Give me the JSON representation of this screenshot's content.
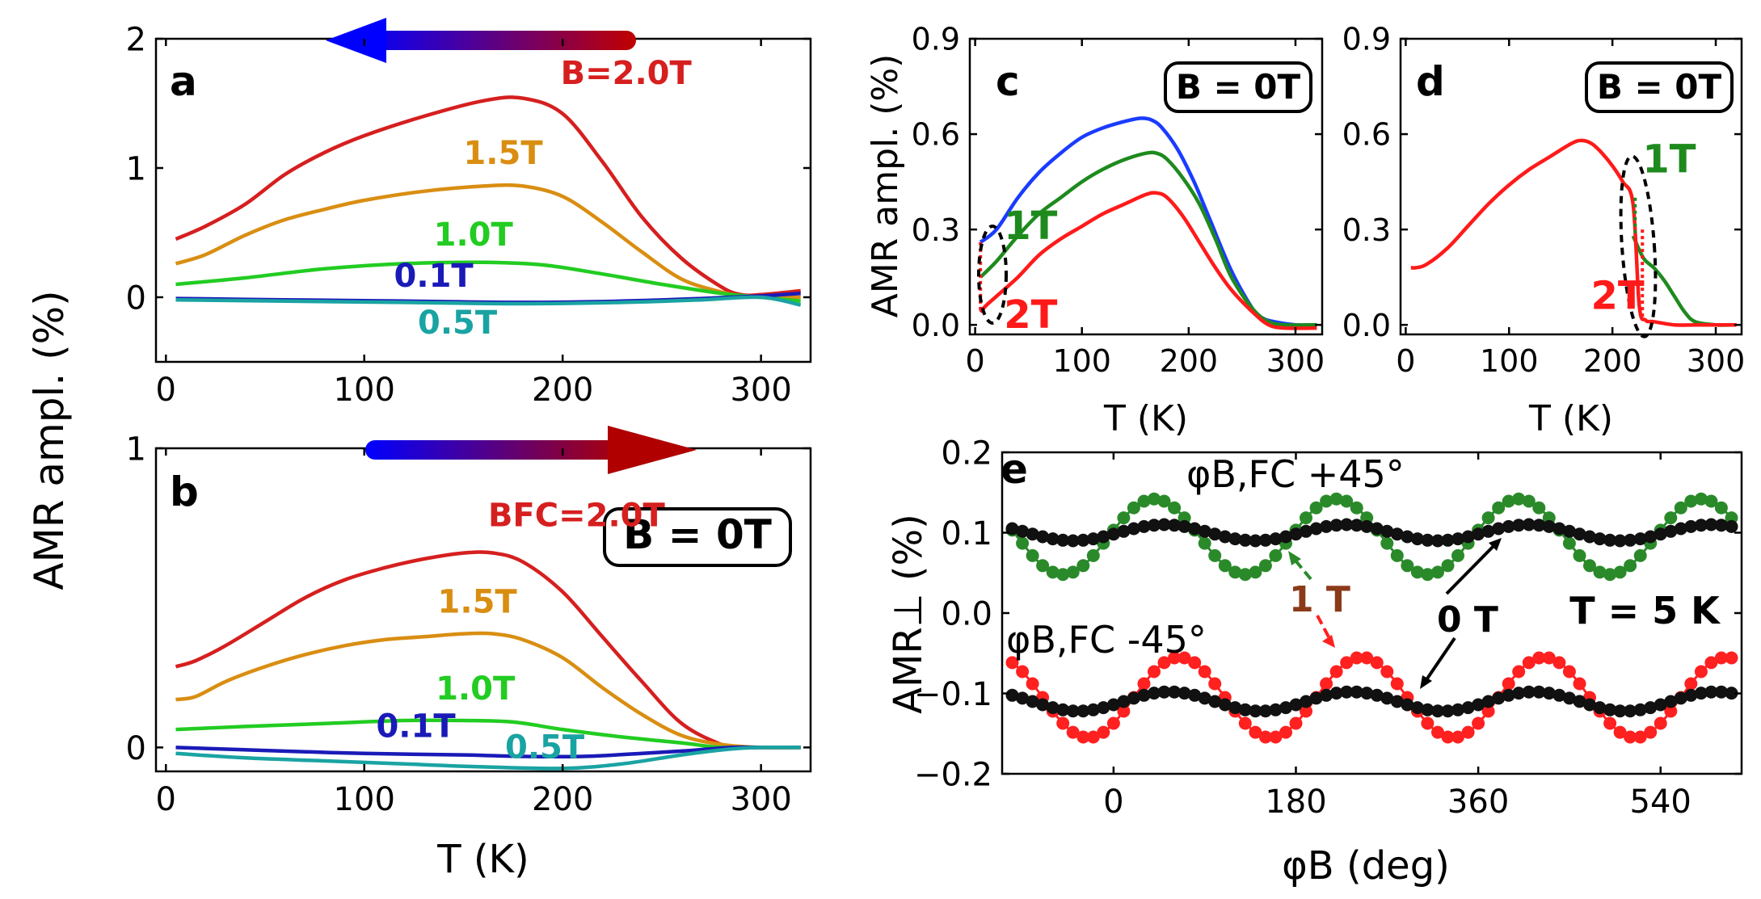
{
  "figure": {
    "shared_ylabel": "AMR ampl. (%)"
  },
  "chart_data": [
    {
      "id": "a",
      "type": "line",
      "panel_label": "a",
      "xlabel": "",
      "ylabel": "AMR ampl. (%)",
      "xlim": [
        -5,
        325
      ],
      "ylim": [
        -0.5,
        2.0
      ],
      "xticks": [
        0,
        100,
        200,
        300
      ],
      "yticks": [
        0,
        1,
        2
      ],
      "arrow_direction": "left",
      "box_label": "",
      "series": [
        {
          "name": "B=2.0T",
          "color": "#d61f1f",
          "x": [
            5,
            20,
            40,
            60,
            80,
            100,
            130,
            160,
            180,
            200,
            220,
            240,
            260,
            280,
            290,
            300,
            320
          ],
          "y": [
            0.45,
            0.55,
            0.72,
            0.95,
            1.12,
            1.25,
            1.4,
            1.52,
            1.54,
            1.42,
            1.05,
            0.62,
            0.3,
            0.08,
            0.02,
            0.02,
            0.05
          ]
        },
        {
          "name": "1.5T",
          "color": "#d98e12",
          "x": [
            5,
            20,
            40,
            60,
            80,
            100,
            130,
            160,
            180,
            200,
            220,
            240,
            260,
            280,
            290,
            300,
            320
          ],
          "y": [
            0.26,
            0.33,
            0.48,
            0.6,
            0.68,
            0.75,
            0.82,
            0.86,
            0.86,
            0.78,
            0.58,
            0.35,
            0.14,
            0.04,
            0.01,
            0.0,
            0.0
          ]
        },
        {
          "name": "1.0T",
          "color": "#22cc22",
          "x": [
            5,
            40,
            80,
            120,
            160,
            190,
            220,
            250,
            280,
            300,
            320
          ],
          "y": [
            0.1,
            0.15,
            0.22,
            0.26,
            0.27,
            0.25,
            0.18,
            0.1,
            0.03,
            0.0,
            -0.03
          ]
        },
        {
          "name": "0.1T",
          "color": "#1a1ab8",
          "x": [
            5,
            60,
            120,
            180,
            230,
            270,
            300,
            320
          ],
          "y": [
            -0.01,
            -0.02,
            -0.03,
            -0.04,
            -0.03,
            -0.01,
            0.01,
            0.03
          ]
        },
        {
          "name": "0.5T",
          "color": "#1aa3a3",
          "x": [
            5,
            60,
            120,
            180,
            230,
            270,
            300,
            320
          ],
          "y": [
            -0.02,
            -0.03,
            -0.04,
            -0.05,
            -0.04,
            -0.02,
            0.0,
            -0.06
          ]
        }
      ],
      "labels": [
        {
          "text": "B=2.0T",
          "color": "#d61f1f",
          "x": 232,
          "y": 1.65
        },
        {
          "text": "1.5T",
          "color": "#d98e12",
          "x": 170,
          "y": 1.03
        },
        {
          "text": "1.0T",
          "color": "#22cc22",
          "x": 155,
          "y": 0.4
        },
        {
          "text": "0.1T",
          "color": "#1a1ab8",
          "x": 135,
          "y": 0.08
        },
        {
          "text": "0.5T",
          "color": "#1aa3a3",
          "x": 147,
          "y": -0.28
        }
      ]
    },
    {
      "id": "b",
      "type": "line",
      "panel_label": "b",
      "xlabel": "T (K)",
      "ylabel": "",
      "xlim": [
        -5,
        325
      ],
      "ylim": [
        -0.08,
        1.0
      ],
      "xticks": [
        0,
        100,
        200,
        300
      ],
      "yticks": [
        0,
        1
      ],
      "arrow_direction": "right",
      "box_label": "B = 0T",
      "series": [
        {
          "name": "BFC=2.0T",
          "color": "#d61f1f",
          "x": [
            5,
            15,
            30,
            50,
            70,
            90,
            110,
            130,
            150,
            165,
            180,
            200,
            220,
            240,
            260,
            280,
            290,
            300,
            320
          ],
          "y": [
            0.27,
            0.29,
            0.34,
            0.42,
            0.5,
            0.56,
            0.6,
            0.63,
            0.65,
            0.65,
            0.62,
            0.52,
            0.37,
            0.22,
            0.08,
            0.01,
            0.0,
            0.0,
            0.0
          ]
        },
        {
          "name": "1.5T",
          "color": "#d98e12",
          "x": [
            5,
            15,
            30,
            50,
            70,
            90,
            110,
            130,
            150,
            165,
            180,
            200,
            220,
            240,
            260,
            280,
            300,
            320
          ],
          "y": [
            0.16,
            0.17,
            0.22,
            0.27,
            0.31,
            0.34,
            0.36,
            0.37,
            0.38,
            0.38,
            0.36,
            0.3,
            0.2,
            0.11,
            0.04,
            0.01,
            0.0,
            0.0
          ]
        },
        {
          "name": "1.0T",
          "color": "#22cc22",
          "x": [
            5,
            40,
            80,
            120,
            150,
            175,
            200,
            230,
            260,
            280,
            300,
            320
          ],
          "y": [
            0.06,
            0.07,
            0.08,
            0.09,
            0.09,
            0.085,
            0.06,
            0.035,
            0.015,
            0.0,
            0.0,
            0.0
          ]
        },
        {
          "name": "0.1T",
          "color": "#1a1ab8",
          "x": [
            5,
            50,
            100,
            150,
            180,
            210,
            240,
            265,
            285,
            300,
            320
          ],
          "y": [
            0.0,
            -0.01,
            -0.02,
            -0.025,
            -0.03,
            -0.03,
            -0.02,
            -0.01,
            0.0,
            0.0,
            0.0
          ]
        },
        {
          "name": "0.5T",
          "color": "#1aa3a3",
          "x": [
            5,
            40,
            80,
            120,
            160,
            200,
            230,
            260,
            285,
            300,
            320
          ],
          "y": [
            -0.02,
            -0.035,
            -0.045,
            -0.055,
            -0.065,
            -0.07,
            -0.055,
            -0.025,
            -0.005,
            0.0,
            0.0
          ]
        }
      ],
      "labels": [
        {
          "text": "BFC=2.0T",
          "color": "#d61f1f",
          "x": 207,
          "y": 0.74
        },
        {
          "text": "1.5T",
          "color": "#d98e12",
          "x": 157,
          "y": 0.45
        },
        {
          "text": "1.0T",
          "color": "#22cc22",
          "x": 156,
          "y": 0.16
        },
        {
          "text": "0.1T",
          "color": "#1a1ab8",
          "x": 126,
          "y": 0.035
        },
        {
          "text": "0.5T",
          "color": "#1aa3a3",
          "x": 191,
          "y": -0.035
        }
      ]
    },
    {
      "id": "c",
      "type": "line",
      "panel_label": "c",
      "xlabel": "T (K)",
      "ylabel": "AMR ampl. (%)",
      "xlim": [
        -5,
        325
      ],
      "ylim": [
        -0.03,
        0.9
      ],
      "xticks": [
        0,
        100,
        200,
        300
      ],
      "yticks": [
        0.0,
        0.3,
        0.6,
        0.9
      ],
      "ytick_labels": [
        "0.0",
        "0.3",
        "0.6",
        "0.9"
      ],
      "box_label": "B = 0T",
      "series": [
        {
          "name": "blue",
          "color": "#1a3cff",
          "x": [
            5,
            20,
            40,
            60,
            80,
            100,
            120,
            140,
            155,
            165,
            175,
            190,
            205,
            220,
            240,
            260,
            270,
            280,
            300,
            320
          ],
          "y": [
            0.26,
            0.3,
            0.4,
            0.48,
            0.54,
            0.59,
            0.62,
            0.64,
            0.65,
            0.645,
            0.62,
            0.55,
            0.45,
            0.33,
            0.17,
            0.05,
            0.02,
            0.01,
            0.0,
            0.0
          ]
        },
        {
          "name": "1T",
          "color": "#1e8a1e",
          "x": [
            5,
            20,
            40,
            60,
            80,
            100,
            120,
            140,
            160,
            170,
            180,
            195,
            210,
            225,
            240,
            260,
            275,
            290,
            320
          ],
          "y": [
            0.15,
            0.2,
            0.28,
            0.35,
            0.4,
            0.45,
            0.49,
            0.52,
            0.54,
            0.54,
            0.52,
            0.46,
            0.38,
            0.27,
            0.15,
            0.05,
            0.01,
            0.0,
            0.0
          ]
        },
        {
          "name": "2T",
          "color": "#ff1a1a",
          "x": [
            5,
            10,
            20,
            40,
            60,
            80,
            100,
            120,
            140,
            160,
            170,
            180,
            195,
            210,
            225,
            240,
            260,
            275,
            290,
            320
          ],
          "y": [
            0.04,
            0.06,
            0.09,
            0.15,
            0.22,
            0.27,
            0.31,
            0.35,
            0.38,
            0.41,
            0.415,
            0.4,
            0.34,
            0.26,
            0.18,
            0.11,
            0.04,
            0.0,
            -0.01,
            -0.01
          ]
        }
      ],
      "labels": [
        {
          "text": "1T",
          "color": "#1e8a1e",
          "x": 52,
          "y": 0.27
        },
        {
          "text": "2T",
          "color": "#ff1a1a",
          "x": 52,
          "y": -0.01
        }
      ]
    },
    {
      "id": "d",
      "type": "line",
      "panel_label": "d",
      "xlabel": "T (K)",
      "ylabel": "",
      "xlim": [
        -5,
        325
      ],
      "ylim": [
        -0.03,
        0.9
      ],
      "xticks": [
        0,
        100,
        200,
        300
      ],
      "yticks": [
        0.0,
        0.3,
        0.6,
        0.9
      ],
      "ytick_labels": [
        "0.0",
        "0.3",
        "0.6",
        "0.9"
      ],
      "box_label": "B = 0T",
      "series": [
        {
          "name": "1T",
          "color": "#1e8a1e",
          "x": [
            220,
            230,
            240,
            250,
            260,
            270,
            280,
            300,
            320
          ],
          "y": [
            0.28,
            0.21,
            0.18,
            0.14,
            0.09,
            0.04,
            0.01,
            0.0,
            0.0
          ]
        },
        {
          "name": "2T",
          "color": "#ff1a1a",
          "x": [
            5,
            10,
            20,
            40,
            60,
            80,
            100,
            120,
            140,
            160,
            170,
            180,
            190,
            200,
            210,
            220,
            226,
            232,
            240,
            260,
            280,
            300,
            320
          ],
          "y": [
            0.18,
            0.18,
            0.19,
            0.24,
            0.31,
            0.38,
            0.44,
            0.49,
            0.53,
            0.57,
            0.58,
            0.57,
            0.54,
            0.5,
            0.45,
            0.38,
            0.06,
            0.015,
            0.01,
            0.0,
            0.0,
            0.0,
            0.0
          ]
        }
      ],
      "labels": [
        {
          "text": "1T",
          "color": "#1e8a1e",
          "x": 255,
          "y": 0.48
        },
        {
          "text": "2T",
          "color": "#ff1a1a",
          "x": 205,
          "y": 0.05
        }
      ]
    },
    {
      "id": "e",
      "type": "scatter",
      "panel_label": "e",
      "xlabel": "φB (deg)",
      "ylabel": "AMR⊥ (%)",
      "xlim": [
        -110,
        620
      ],
      "ylim": [
        -0.2,
        0.2
      ],
      "xticks": [
        0,
        180,
        360,
        540
      ],
      "yticks": [
        -0.2,
        -0.1,
        0.0,
        0.1,
        0.2
      ],
      "ytick_labels": [
        "−0.2",
        "−0.1",
        "0.0",
        "0.1",
        "0.2"
      ],
      "box_label": "T = 5 K",
      "series_params": [
        {
          "name": "φB,FC +45° 1 T",
          "color": "#2a8a2a",
          "offset": 0.095,
          "amp": 0.047,
          "phase_deg": 40,
          "period_deg": 180
        },
        {
          "name": "φB,FC +45° 0 T",
          "color": "#111111",
          "offset": 0.1,
          "amp": 0.01,
          "phase_deg": 50,
          "period_deg": 180
        },
        {
          "name": "φB,FC -45° 1 T",
          "color": "#ff2020",
          "offset": -0.105,
          "amp": 0.05,
          "phase_deg": 65,
          "period_deg": 180
        },
        {
          "name": "φB,FC -45° 0 T",
          "color": "#111111",
          "offset": -0.11,
          "amp": 0.012,
          "phase_deg": 55,
          "period_deg": 180
        }
      ],
      "x_start": -100,
      "x_end": 610,
      "x_step": 10,
      "annotations": [
        {
          "text": "φB,FC  +45°",
          "color": "#111111"
        },
        {
          "text": "φB,FC  -45°",
          "color": "#111111"
        },
        {
          "text": "1 T",
          "color": "#8b3a1a"
        },
        {
          "text": "0 T",
          "color": "#111111"
        }
      ]
    }
  ]
}
